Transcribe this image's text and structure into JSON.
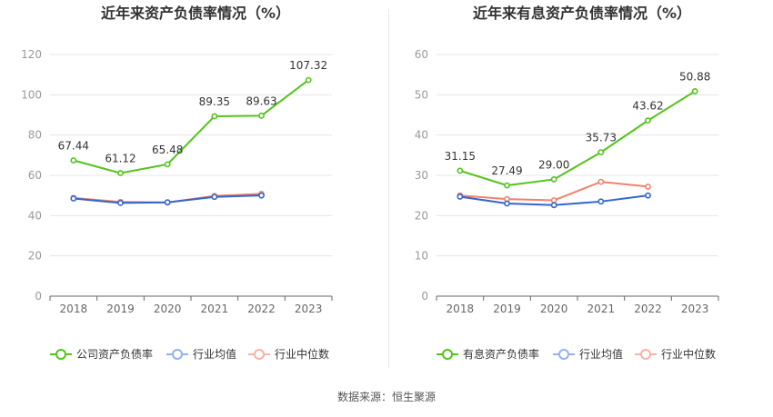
{
  "source_label": "数据来源：恒生聚源",
  "colors": {
    "company": "#52c41a",
    "industry_avg": "#3366cc",
    "industry_median": "#f0826a",
    "legend_avg_icon": "#8fb3ec",
    "legend_median_icon": "#f5b3a3",
    "axis": "#999999",
    "grid": "#e5e5e5",
    "text": "#333333"
  },
  "chart_data": [
    {
      "type": "line",
      "title": "近年来资产负债率情况（%）",
      "categories": [
        "2018",
        "2019",
        "2020",
        "2021",
        "2022",
        "2023"
      ],
      "ylim": [
        0,
        120
      ],
      "yticks": [
        0,
        20,
        40,
        60,
        80,
        100,
        120
      ],
      "series": [
        {
          "name": "公司资产负债率",
          "key": "company",
          "values": [
            67.44,
            61.12,
            65.48,
            89.35,
            89.63,
            107.32
          ],
          "labels": [
            "67.44",
            "61.12",
            "65.48",
            "89.35",
            "89.63",
            "107.32"
          ]
        },
        {
          "name": "行业均值",
          "key": "industry_avg",
          "values": [
            48.5,
            46.3,
            46.6,
            49.3,
            50.0,
            null
          ]
        },
        {
          "name": "行业中位数",
          "key": "industry_median",
          "values": [
            48.8,
            46.8,
            46.5,
            49.8,
            50.8,
            null
          ]
        }
      ]
    },
    {
      "type": "line",
      "title": "近年来有息资产负债率情况（%）",
      "categories": [
        "2018",
        "2019",
        "2020",
        "2021",
        "2022",
        "2023"
      ],
      "ylim": [
        0,
        60
      ],
      "yticks": [
        0,
        10,
        20,
        30,
        40,
        50,
        60
      ],
      "series": [
        {
          "name": "有息资产负债率",
          "key": "company",
          "values": [
            31.15,
            27.49,
            29.0,
            35.73,
            43.62,
            50.88
          ],
          "labels": [
            "31.15",
            "27.49",
            "29.00",
            "35.73",
            "43.62",
            "50.88"
          ]
        },
        {
          "name": "行业均值",
          "key": "industry_avg",
          "values": [
            24.7,
            23.0,
            22.6,
            23.5,
            25.0,
            null
          ]
        },
        {
          "name": "行业中位数",
          "key": "industry_median",
          "values": [
            25.0,
            24.1,
            23.8,
            28.4,
            27.2,
            null
          ]
        }
      ]
    }
  ]
}
